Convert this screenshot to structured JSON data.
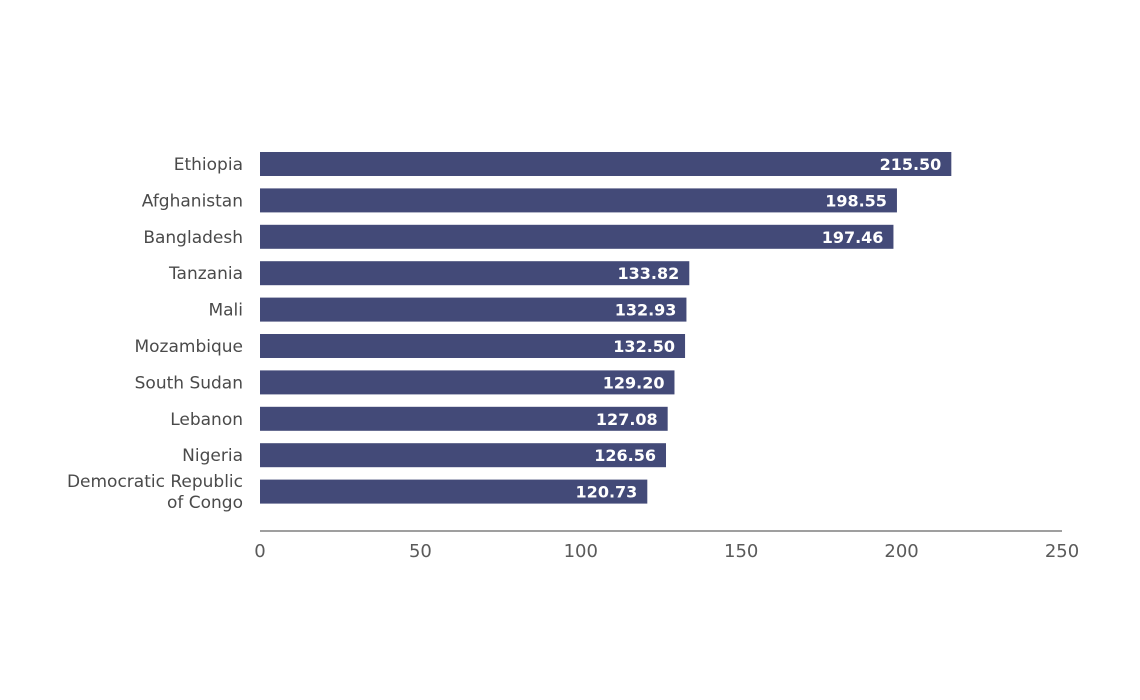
{
  "chart_data": {
    "type": "bar",
    "orientation": "horizontal",
    "title": "",
    "xlabel": "",
    "ylabel": "",
    "categories": [
      [
        "Ethiopia"
      ],
      [
        "Afghanistan"
      ],
      [
        "Bangladesh"
      ],
      [
        "Tanzania"
      ],
      [
        "Mali"
      ],
      [
        "Mozambique"
      ],
      [
        "South Sudan"
      ],
      [
        "Lebanon"
      ],
      [
        "Nigeria"
      ],
      [
        "Democratic Republic",
        "of Congo"
      ]
    ],
    "values": [
      215.5,
      198.55,
      197.46,
      133.82,
      132.93,
      132.5,
      129.2,
      127.08,
      126.56,
      120.73
    ],
    "value_labels": [
      "215.50",
      "198.55",
      "197.46",
      "133.82",
      "132.93",
      "132.50",
      "129.20",
      "127.08",
      "126.56",
      "120.73"
    ],
    "xlim": [
      0,
      250
    ],
    "xticks": [
      0,
      50,
      100,
      150,
      200,
      250
    ],
    "grid": false,
    "bar_color": "#434a78",
    "axis_color": "#666666"
  }
}
